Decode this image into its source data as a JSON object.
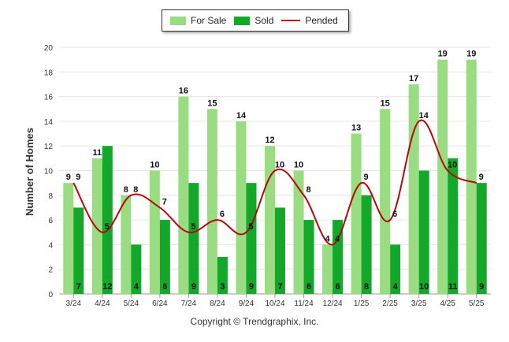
{
  "legend": {
    "for_sale": "For Sale",
    "sold": "Sold",
    "pended": "Pended"
  },
  "copyright": "Copyright © Trendgraphix, Inc.",
  "colors": {
    "for_sale": "#9ADC82",
    "sold": "#13A82A",
    "pended": "#B5080D"
  },
  "chart_data": {
    "type": "bar",
    "title": "",
    "xlabel": "",
    "ylabel": "Number of Homes",
    "ylim": [
      0,
      20
    ],
    "yticks": [
      0,
      2,
      4,
      6,
      8,
      10,
      12,
      14,
      16,
      18,
      20
    ],
    "grid": true,
    "legend_position": "top-center",
    "categories": [
      "3/24",
      "4/24",
      "5/24",
      "6/24",
      "7/24",
      "8/24",
      "9/24",
      "10/24",
      "11/24",
      "12/24",
      "1/25",
      "2/25",
      "3/25",
      "4/25",
      "5/25"
    ],
    "series": [
      {
        "name": "For Sale",
        "type": "bar",
        "values": [
          9,
          11,
          8,
          10,
          16,
          15,
          14,
          12,
          10,
          4,
          13,
          15,
          17,
          19,
          19
        ]
      },
      {
        "name": "Sold",
        "type": "bar",
        "values": [
          7,
          12,
          4,
          6,
          9,
          3,
          9,
          7,
          6,
          6,
          8,
          4,
          10,
          11,
          9
        ]
      },
      {
        "name": "Pended",
        "type": "line",
        "values": [
          9,
          5,
          8,
          7,
          5,
          6,
          5,
          10,
          8,
          4,
          9,
          6,
          14,
          10,
          9
        ]
      }
    ]
  }
}
